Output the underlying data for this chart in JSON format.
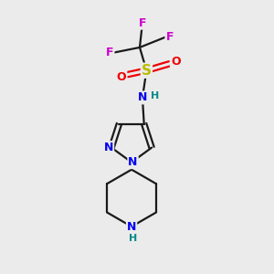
{
  "bg_color": "#ebebeb",
  "bond_color": "#1a1a1a",
  "bond_width": 1.6,
  "atom_colors": {
    "C": "#1a1a1a",
    "N": "#0000ee",
    "S": "#bbbb00",
    "O": "#ee0000",
    "F": "#cc00cc",
    "H": "#008888"
  },
  "font_size": 9,
  "fig_size": [
    3.0,
    3.0
  ],
  "xlim": [
    0,
    10
  ],
  "ylim": [
    0,
    10
  ]
}
